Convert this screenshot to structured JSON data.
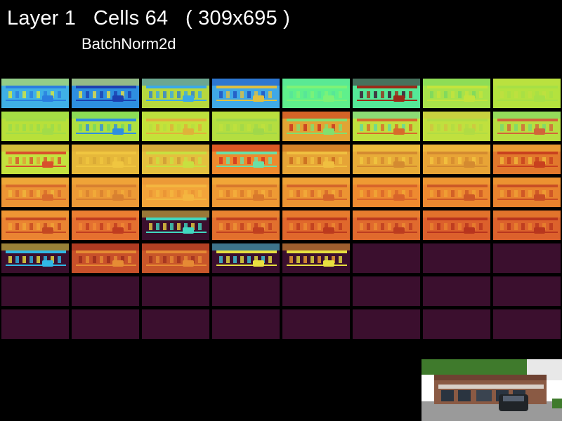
{
  "header": {
    "title": "Layer 1   Cells 64   ( 309x695 )",
    "subtitle": "BatchNorm2d"
  },
  "grid": {
    "columns": 8,
    "rows": 8,
    "empty_color": "#3b0f2e",
    "cells": [
      {
        "base": "#3fb0e6",
        "accent": "#2a7ee0",
        "edge": "#d9e83a"
      },
      {
        "base": "#2e8fe0",
        "accent": "#1b3fb0",
        "edge": "#e8e040"
      },
      {
        "base": "#b6d83e",
        "accent": "#3aa9e8",
        "edge": "#2e7fd6"
      },
      {
        "base": "#40a8e6",
        "accent": "#e0c040",
        "edge": "#1e4fc0"
      },
      {
        "base": "#5ff08c",
        "accent": "#7ff276",
        "edge": "#56e39a"
      },
      {
        "base": "#54e898",
        "accent": "#9a2a18",
        "edge": "#3b0f2e"
      },
      {
        "base": "#a8e24a",
        "accent": "#c4e43c",
        "edge": "#78d860"
      },
      {
        "base": "#b4e23e",
        "accent": "#a6e046",
        "edge": "#c0e040"
      },
      {
        "base": "#b8e03a",
        "accent": "#a2dc48",
        "edge": "#98dc4c"
      },
      {
        "base": "#b0e040",
        "accent": "#2e8ee0",
        "edge": "#70d866"
      },
      {
        "base": "#c4e23a",
        "accent": "#e0b23a",
        "edge": "#b8de40"
      },
      {
        "base": "#b4de40",
        "accent": "#a0d84a",
        "edge": "#c0e03c"
      },
      {
        "base": "#e2a434",
        "accent": "#80e070",
        "edge": "#c8301e"
      },
      {
        "base": "#c0e03e",
        "accent": "#d86a2c",
        "edge": "#60d8a0"
      },
      {
        "base": "#c0e03e",
        "accent": "#b0dc44",
        "edge": "#d0c440"
      },
      {
        "base": "#b8de40",
        "accent": "#d2643a",
        "edge": "#78d870"
      },
      {
        "base": "#c4e23e",
        "accent": "#d8502c",
        "edge": "#e0a036"
      },
      {
        "base": "#e6b83a",
        "accent": "#f0c640",
        "edge": "#d8a836"
      },
      {
        "base": "#e4c03e",
        "accent": "#c8e040",
        "edge": "#d09a36"
      },
      {
        "base": "#ee8a2e",
        "accent": "#6ae0a6",
        "edge": "#d0301e"
      },
      {
        "base": "#e6a436",
        "accent": "#f0c040",
        "edge": "#c8681e"
      },
      {
        "base": "#e8ac38",
        "accent": "#d48a30",
        "edge": "#f0c840"
      },
      {
        "base": "#e8a436",
        "accent": "#d48a30",
        "edge": "#f2c440"
      },
      {
        "base": "#e2782c",
        "accent": "#c8401e",
        "edge": "#f0b83a"
      },
      {
        "base": "#ec9434",
        "accent": "#d86a2c",
        "edge": "#f0b63c"
      },
      {
        "base": "#ec9a36",
        "accent": "#d88030",
        "edge": "#f2ac3a"
      },
      {
        "base": "#f2a43a",
        "accent": "#f4b640",
        "edge": "#e89234"
      },
      {
        "base": "#ee9a34",
        "accent": "#d8782c",
        "edge": "#f4b03c"
      },
      {
        "base": "#ec9432",
        "accent": "#d4642a",
        "edge": "#f2ac3a"
      },
      {
        "base": "#ee8a30",
        "accent": "#d8642a",
        "edge": "#f0a836"
      },
      {
        "base": "#ec8830",
        "accent": "#cc5826",
        "edge": "#f0a234"
      },
      {
        "base": "#e8822e",
        "accent": "#c84e24",
        "edge": "#eea034"
      },
      {
        "base": "#ea8432",
        "accent": "#c44822",
        "edge": "#f0a436"
      },
      {
        "base": "#e47030",
        "accent": "#c03c20",
        "edge": "#f08a34"
      },
      {
        "base": "#3b0f2e",
        "accent": "#40d8c0",
        "edge": "#e8d040"
      },
      {
        "base": "#e2702e",
        "accent": "#c04020",
        "edge": "#ee9434"
      },
      {
        "base": "#e0682c",
        "accent": "#bc3a1e",
        "edge": "#ec8a32"
      },
      {
        "base": "#e06a2e",
        "accent": "#bc3c20",
        "edge": "#ec8c32"
      },
      {
        "base": "#dc602c",
        "accent": "#b8341e",
        "edge": "#e8822e"
      },
      {
        "base": "#dc622c",
        "accent": "#b8361e",
        "edge": "#e8842e"
      },
      {
        "base": "#3b0f2e",
        "accent": "#30b8e6",
        "edge": "#e8e040"
      },
      {
        "base": "#c8502a",
        "accent": "#e68c34",
        "edge": "#9a2a1c"
      },
      {
        "base": "#c8562a",
        "accent": "#e68a34",
        "edge": "#a0301e"
      },
      {
        "base": "#3b0f2e",
        "accent": "#e8e040",
        "edge": "#40c8d8"
      },
      {
        "base": "#3b0f2e",
        "accent": "#e8e040",
        "edge": "#f0a030"
      },
      {
        "base": "#3b0f2e",
        "accent": "#3b0f2e",
        "edge": "#3b0f2e"
      },
      {
        "base": "#3b0f2e",
        "accent": "#3b0f2e",
        "edge": "#3b0f2e"
      },
      {
        "base": "#3b0f2e",
        "accent": "#3b0f2e",
        "edge": "#3b0f2e"
      },
      {
        "base": "#3b0f2e",
        "accent": "#3b0f2e",
        "edge": "#3b0f2e"
      },
      {
        "base": "#3b0f2e",
        "accent": "#3b0f2e",
        "edge": "#3b0f2e"
      },
      {
        "base": "#3b0f2e",
        "accent": "#3b0f2e",
        "edge": "#3b0f2e"
      },
      {
        "base": "#3b0f2e",
        "accent": "#3b0f2e",
        "edge": "#3b0f2e"
      },
      {
        "base": "#3b0f2e",
        "accent": "#3b0f2e",
        "edge": "#3b0f2e"
      },
      {
        "base": "#3b0f2e",
        "accent": "#3b0f2e",
        "edge": "#3b0f2e"
      },
      {
        "base": "#3b0f2e",
        "accent": "#3b0f2e",
        "edge": "#3b0f2e"
      },
      {
        "base": "#3b0f2e",
        "accent": "#3b0f2e",
        "edge": "#3b0f2e"
      },
      {
        "base": "#3b0f2e",
        "accent": "#3b0f2e",
        "edge": "#3b0f2e"
      },
      {
        "base": "#3b0f2e",
        "accent": "#3b0f2e",
        "edge": "#3b0f2e"
      },
      {
        "base": "#3b0f2e",
        "accent": "#3b0f2e",
        "edge": "#3b0f2e"
      },
      {
        "base": "#3b0f2e",
        "accent": "#3b0f2e",
        "edge": "#3b0f2e"
      },
      {
        "base": "#3b0f2e",
        "accent": "#3b0f2e",
        "edge": "#3b0f2e"
      },
      {
        "base": "#3b0f2e",
        "accent": "#3b0f2e",
        "edge": "#3b0f2e"
      },
      {
        "base": "#3b0f2e",
        "accent": "#3b0f2e",
        "edge": "#3b0f2e"
      },
      {
        "base": "#3b0f2e",
        "accent": "#3b0f2e",
        "edge": "#3b0f2e"
      }
    ]
  },
  "input_image": {
    "icon": "storefront-photo",
    "sky": "#ffffff",
    "trees": "#3f7a2c",
    "building": "#8a5a44",
    "pavement": "#9a9a9a",
    "car": "#202428"
  }
}
